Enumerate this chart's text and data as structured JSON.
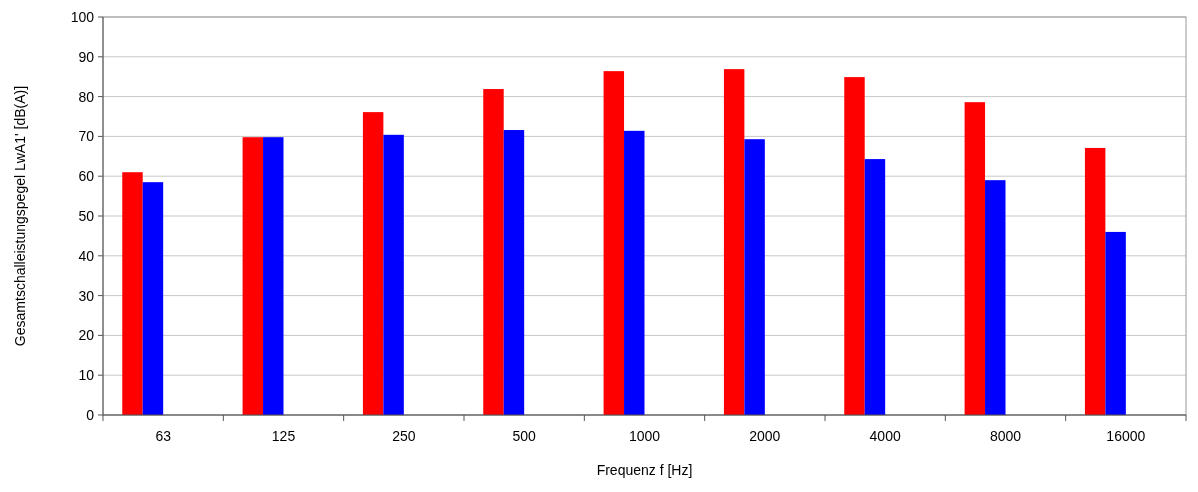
{
  "chart_data": {
    "type": "bar",
    "xlabel": "Frequenz f [Hz]",
    "ylabel": "Gesamtschalleistungspegel LwA1' [dB(A)]",
    "categories": [
      "63",
      "125",
      "250",
      "500",
      "1000",
      "2000",
      "4000",
      "8000",
      "16000"
    ],
    "series": [
      {
        "color": "#ff0000",
        "values": [
          61,
          69.8,
          76.1,
          81.9,
          86.4,
          86.9,
          84.9,
          78.6,
          67.1
        ]
      },
      {
        "color": "#0000ff",
        "values": [
          58.5,
          69.8,
          70.4,
          71.6,
          71.4,
          69.3,
          64.3,
          59.0,
          46.0
        ]
      }
    ],
    "ylim": [
      0,
      100
    ],
    "yticks": [
      0,
      10,
      20,
      30,
      40,
      50,
      60,
      70,
      80,
      90,
      100
    ],
    "grid": "y"
  }
}
